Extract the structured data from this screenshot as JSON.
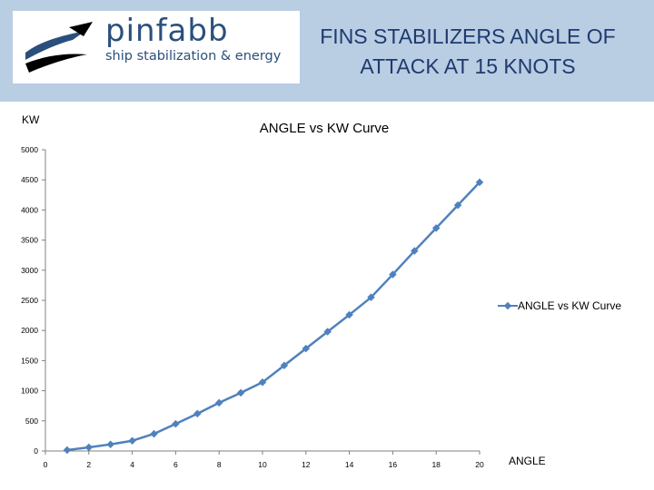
{
  "header": {
    "logo": {
      "name": "pinfabb",
      "tagline": "ship stabilization & energy"
    },
    "title_line1": "FINS STABILIZERS ANGLE OF",
    "title_line2": "ATTACK AT 15 KNOTS",
    "background_color": "#b9cde3"
  },
  "chart_data": {
    "type": "line",
    "title": "ANGLE vs KW Curve",
    "xlabel": "ANGLE",
    "ylabel": "KW",
    "xlim": [
      0,
      20
    ],
    "ylim": [
      0,
      5000
    ],
    "x_ticks": [
      0,
      2,
      4,
      6,
      8,
      10,
      12,
      14,
      16,
      18,
      20
    ],
    "y_ticks": [
      0,
      500,
      1000,
      1500,
      2000,
      2500,
      3000,
      3500,
      4000,
      4500,
      5000
    ],
    "grid": false,
    "legend_position": "right",
    "series": [
      {
        "name": "ANGLE vs KW Curve",
        "color": "#4f81bd",
        "x": [
          1,
          2,
          3,
          4,
          5,
          6,
          7,
          8,
          9,
          10,
          11,
          12,
          13,
          14,
          15,
          16,
          17,
          18,
          19,
          20
        ],
        "y": [
          15,
          60,
          110,
          170,
          285,
          450,
          620,
          800,
          965,
          1140,
          1420,
          1700,
          1980,
          2260,
          2550,
          2930,
          3320,
          3700,
          4080,
          4460
        ]
      }
    ]
  }
}
